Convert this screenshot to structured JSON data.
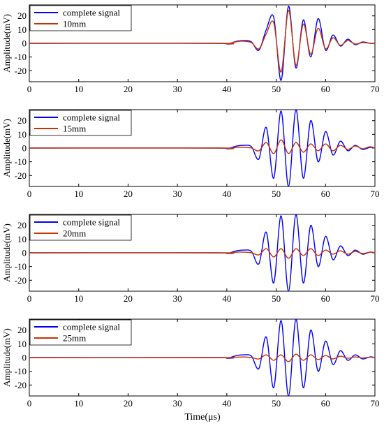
{
  "figure": {
    "xlabel": "Time(μs)"
  },
  "chart_data": [
    {
      "type": "line",
      "title": "",
      "xlabel": "",
      "ylabel": "Amplitude(mV)",
      "xlim": [
        0,
        70
      ],
      "ylim": [
        -28,
        28
      ],
      "xticks": [
        0,
        10,
        20,
        30,
        40,
        50,
        60,
        70
      ],
      "yticks": [
        20,
        10,
        0,
        -10,
        -20
      ],
      "legend_position": "top-left",
      "grid": false,
      "series": [
        {
          "name": "complete signal",
          "color": "#0000ff",
          "x": [
            0,
            38,
            40,
            42,
            43.5,
            45,
            46.5,
            48,
            49.5,
            51,
            52.5,
            54,
            55.5,
            57,
            58.5,
            60,
            61.5,
            63,
            64.5,
            66,
            67.5,
            69,
            70
          ],
          "y": [
            0,
            0,
            -0.5,
            1.5,
            2,
            1,
            -5,
            10,
            19,
            -27,
            27,
            -18,
            17,
            -10,
            18,
            -5,
            6,
            -2,
            3,
            -1,
            1,
            0,
            0
          ]
        },
        {
          "name": "10mm",
          "color": "#c83200",
          "x": [
            0,
            38,
            40,
            42,
            43.5,
            45,
            46.5,
            48,
            49.5,
            51,
            52.5,
            54,
            55.5,
            57,
            58.5,
            60,
            61.5,
            63,
            64.5,
            66,
            67.5,
            69,
            70
          ],
          "y": [
            0,
            0,
            -0.5,
            1.2,
            1.5,
            0.5,
            -4,
            7,
            15,
            -21,
            24,
            -16,
            14,
            -8,
            11,
            -4,
            4,
            -1.5,
            2,
            -0.5,
            0.5,
            0,
            0
          ]
        }
      ]
    },
    {
      "type": "line",
      "title": "",
      "xlabel": "",
      "ylabel": "Amplitude(mV)",
      "xlim": [
        0,
        70
      ],
      "ylim": [
        -28,
        28
      ],
      "xticks": [
        0,
        10,
        20,
        30,
        40,
        50,
        60,
        70
      ],
      "yticks": [
        20,
        10,
        0,
        -10,
        -20
      ],
      "legend_position": "top-left",
      "grid": false,
      "series": [
        {
          "name": "complete signal",
          "color": "#0000ff",
          "x": [
            0,
            38,
            40,
            42,
            43.5,
            45,
            46.5,
            48,
            49.5,
            51,
            52.5,
            54,
            55.5,
            57,
            58.5,
            60,
            61.5,
            63,
            64.5,
            66,
            67.5,
            69,
            70
          ],
          "y": [
            0,
            0,
            -0.5,
            1.5,
            2,
            1,
            -8,
            15,
            -22,
            27,
            -28,
            28,
            -22,
            20,
            -10,
            12,
            -5,
            5,
            -2,
            2,
            -1,
            0.5,
            0
          ]
        },
        {
          "name": "15mm",
          "color": "#c83200",
          "x": [
            0,
            38,
            40,
            42,
            43.5,
            45,
            46.5,
            48,
            49.5,
            51,
            52.5,
            54,
            55.5,
            57,
            58.5,
            60,
            61.5,
            63,
            64.5,
            66,
            67.5,
            69,
            70
          ],
          "y": [
            0,
            0,
            -0.3,
            0.5,
            0.5,
            0,
            -2,
            4,
            -4,
            6,
            -4,
            4,
            -3,
            3,
            -2,
            3,
            -2,
            2,
            -1,
            1.5,
            -0.5,
            1,
            0
          ]
        }
      ]
    },
    {
      "type": "line",
      "title": "",
      "xlabel": "",
      "ylabel": "Amplitude(mV)",
      "xlim": [
        0,
        70
      ],
      "ylim": [
        -28,
        28
      ],
      "xticks": [
        0,
        10,
        20,
        30,
        40,
        50,
        60,
        70
      ],
      "yticks": [
        20,
        10,
        0,
        -10,
        -20
      ],
      "legend_position": "top-left",
      "grid": false,
      "series": [
        {
          "name": "complete signal",
          "color": "#0000ff",
          "x": [
            0,
            38,
            40,
            42,
            43.5,
            45,
            46.5,
            48,
            49.5,
            51,
            52.5,
            54,
            55.5,
            57,
            58.5,
            60,
            61.5,
            63,
            64.5,
            66,
            67.5,
            69,
            70
          ],
          "y": [
            0,
            0,
            -0.5,
            1.5,
            2,
            1,
            -8,
            15,
            -22,
            27,
            -28,
            28,
            -22,
            20,
            -10,
            12,
            -5,
            5,
            -2,
            2,
            -1,
            0.5,
            0
          ]
        },
        {
          "name": "20mm",
          "color": "#c83200",
          "x": [
            0,
            38,
            40,
            42,
            43.5,
            45,
            46.5,
            48,
            49.5,
            51,
            52.5,
            54,
            55.5,
            57,
            58.5,
            60,
            61.5,
            63,
            64.5,
            66,
            67.5,
            69,
            70
          ],
          "y": [
            0,
            0,
            -0.3,
            0.5,
            0.5,
            0,
            -1.5,
            3,
            -3,
            3,
            -4,
            3,
            -2,
            3,
            -2,
            2,
            -1,
            1.5,
            -1,
            1,
            -0.5,
            0.5,
            0
          ]
        }
      ]
    },
    {
      "type": "line",
      "title": "",
      "xlabel": "Time(μs)",
      "ylabel": "Amplitude(mV)",
      "xlim": [
        0,
        70
      ],
      "ylim": [
        -28,
        28
      ],
      "xticks": [
        0,
        10,
        20,
        30,
        40,
        50,
        60,
        70
      ],
      "yticks": [
        20,
        10,
        0,
        -10,
        -20
      ],
      "legend_position": "top-left",
      "grid": false,
      "series": [
        {
          "name": "complete signal",
          "color": "#0000ff",
          "x": [
            0,
            38,
            40,
            42,
            43.5,
            45,
            46.5,
            48,
            49.5,
            51,
            52.5,
            54,
            55.5,
            57,
            58.5,
            60,
            61.5,
            63,
            64.5,
            66,
            67.5,
            69,
            70
          ],
          "y": [
            0,
            0,
            -0.5,
            1.5,
            2,
            1,
            -8,
            15,
            -22,
            27,
            -28,
            28,
            -22,
            20,
            -10,
            12,
            -5,
            5,
            -2,
            2,
            -1,
            0.5,
            0
          ]
        },
        {
          "name": "25mm",
          "color": "#c83200",
          "x": [
            0,
            38,
            40,
            42,
            43.5,
            45,
            46.5,
            48,
            49.5,
            51,
            52.5,
            54,
            55.5,
            57,
            58.5,
            60,
            61.5,
            63,
            64.5,
            66,
            67.5,
            69,
            70
          ],
          "y": [
            0,
            0,
            -0.2,
            0.3,
            0.4,
            0,
            -1,
            2,
            -2,
            2,
            -3,
            2.5,
            -2,
            2,
            -1.5,
            1.5,
            -1,
            1,
            -0.5,
            0.5,
            -0.3,
            0.3,
            0
          ]
        }
      ]
    }
  ]
}
